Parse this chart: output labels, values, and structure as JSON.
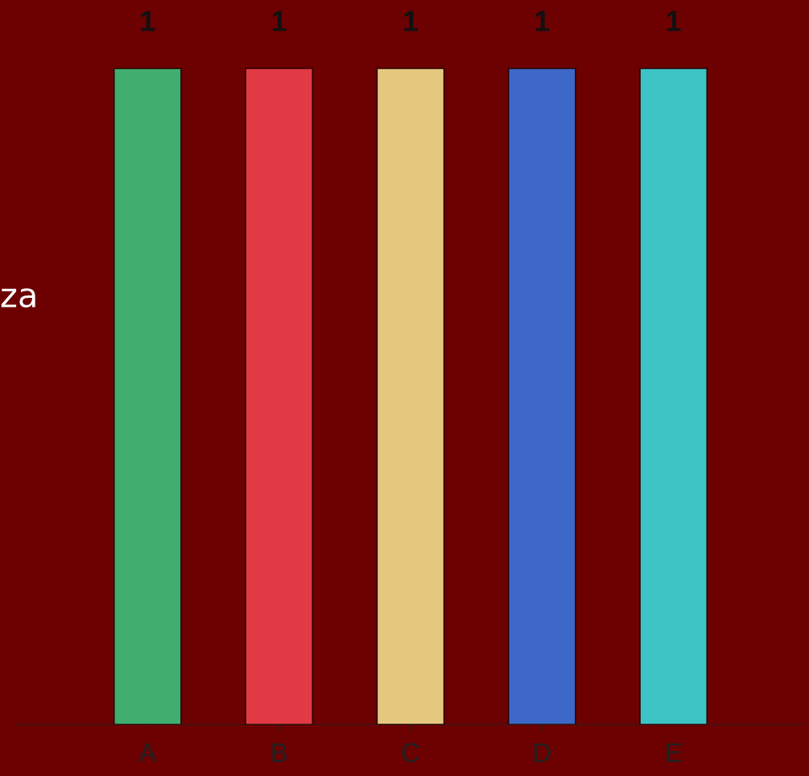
{
  "chart_data": {
    "type": "bar",
    "categories": [
      "A",
      "B",
      "C",
      "D",
      "E"
    ],
    "values": [
      1,
      1,
      1,
      1,
      1
    ],
    "colors": [
      "#3fae6e",
      "#e23a44",
      "#e6c77e",
      "#3d68c8",
      "#3cc4c4"
    ],
    "data_labels": true,
    "annotations": [
      "za"
    ]
  }
}
